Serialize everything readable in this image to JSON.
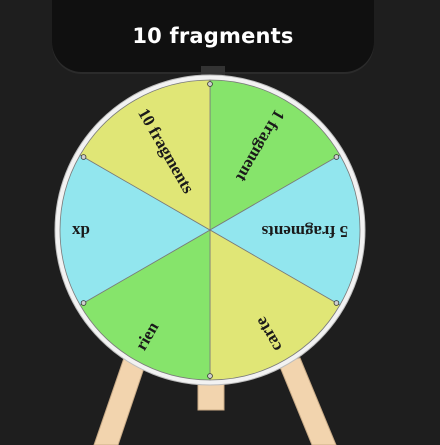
{
  "result": {
    "text": "10 fragments"
  },
  "wheel": {
    "segments": [
      {
        "label": "1 fragment",
        "color": "#86e46b"
      },
      {
        "label": "5 fragments",
        "color": "#92e6ee"
      },
      {
        "label": "carte",
        "color": "#e0e676"
      },
      {
        "label": "rien",
        "color": "#86e46b"
      },
      {
        "label": "xp",
        "color": "#92e6ee"
      },
      {
        "label": "10 fragments",
        "color": "#e0e676"
      }
    ],
    "rim_color": "#f2f2f2",
    "easel_color": "#f2d4ae",
    "pointer_color": "#333333"
  }
}
